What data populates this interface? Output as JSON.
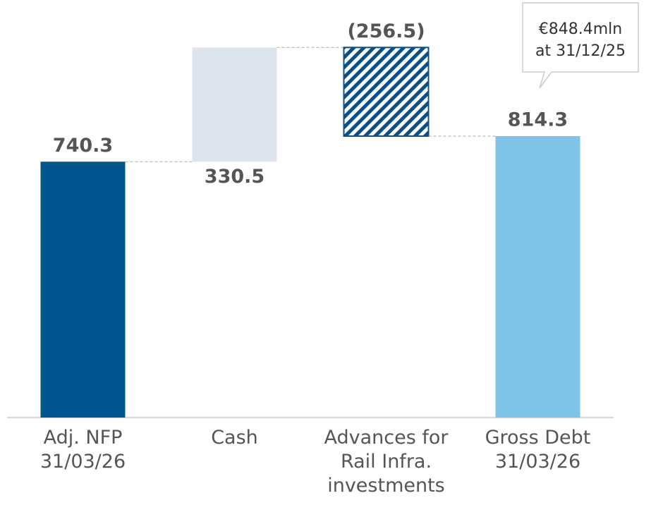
{
  "chart_data": {
    "type": "waterfall",
    "categories": [
      "Adj. NFP\n31/03/26",
      "Cash",
      "Advances for\nRail Infra.\ninvestments",
      "Gross Debt\n31/03/26"
    ],
    "values": [
      740.3,
      330.5,
      -256.5,
      814.3
    ],
    "value_labels": [
      "740.3",
      "330.5",
      "(256.5)",
      "814.3"
    ],
    "measures": [
      "absolute",
      "relative",
      "relative",
      "total"
    ],
    "colors": [
      "#00558f",
      "#dde4ee",
      "#0a4f86",
      "#7fc4e6"
    ],
    "annotation": "€848.4mln\nat 31/12/25",
    "ylim": [
      0,
      1200
    ]
  }
}
